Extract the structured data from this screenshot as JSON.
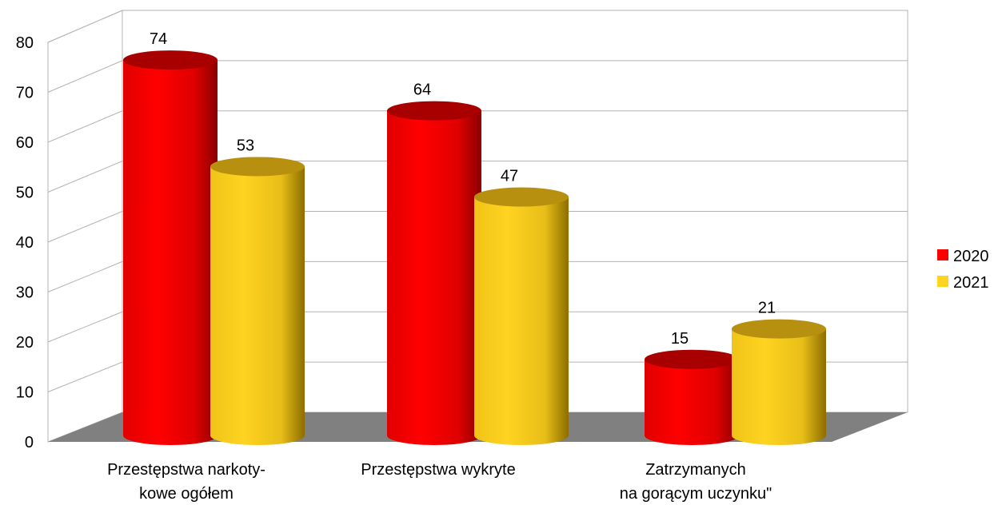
{
  "chart_data": {
    "type": "bar3d",
    "categories": [
      "Przestępstwa narkoty-\nkowe ogółem",
      "Przestępstwa wykryte",
      "Zatrzymanych\nna gorącym uczynku\""
    ],
    "series": [
      {
        "name": "2020",
        "color": "#ff0000",
        "values": [
          74,
          64,
          15
        ]
      },
      {
        "name": "2021",
        "color": "#ffd320",
        "values": [
          53,
          47,
          21
        ]
      }
    ],
    "ylim": [
      0,
      80
    ],
    "yticks": [
      0,
      10,
      20,
      30,
      40,
      50,
      60,
      70,
      80
    ],
    "grid": true,
    "legend": "right"
  }
}
